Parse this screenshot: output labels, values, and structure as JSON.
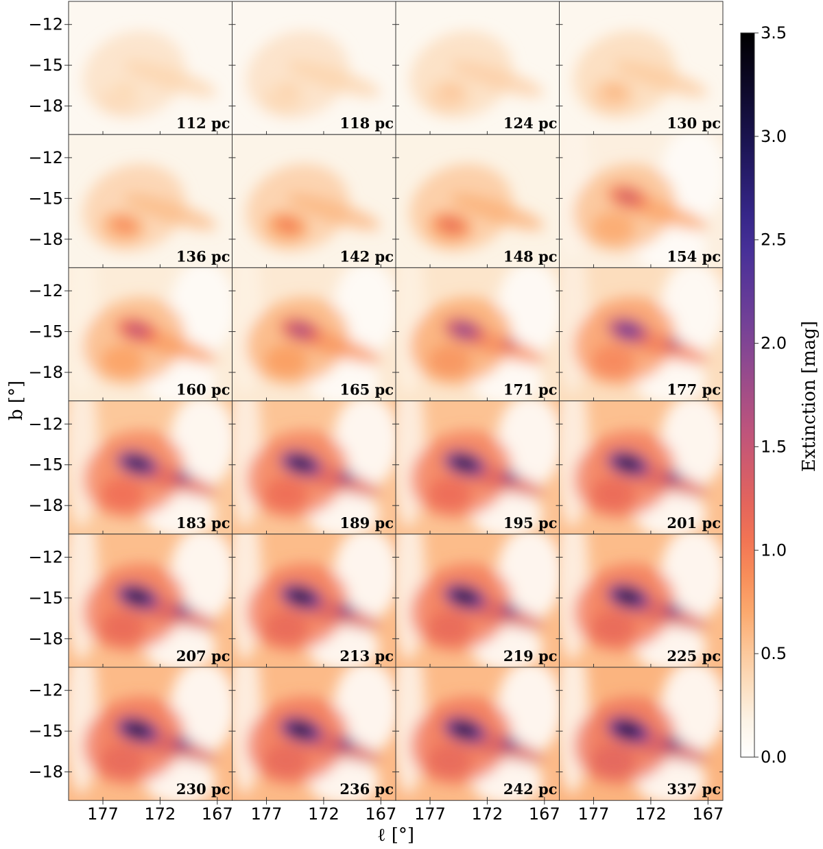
{
  "chart_data": {
    "type": "heatmap",
    "layout": {
      "rows": 6,
      "cols": 4
    },
    "panels": [
      {
        "label": "112 pc",
        "peak": 0.42
      },
      {
        "label": "118 pc",
        "peak": 0.45
      },
      {
        "label": "124 pc",
        "peak": 0.55
      },
      {
        "label": "130 pc",
        "peak": 0.65
      },
      {
        "label": "136 pc",
        "peak": 0.95
      },
      {
        "label": "142 pc",
        "peak": 1.05
      },
      {
        "label": "148 pc",
        "peak": 1.2
      },
      {
        "label": "154 pc",
        "peak": 1.4
      },
      {
        "label": "160 pc",
        "peak": 1.6
      },
      {
        "label": "165 pc",
        "peak": 1.75
      },
      {
        "label": "171 pc",
        "peak": 1.95
      },
      {
        "label": "177 pc",
        "peak": 2.3
      },
      {
        "label": "183 pc",
        "peak": 3.0
      },
      {
        "label": "189 pc",
        "peak": 3.1
      },
      {
        "label": "195 pc",
        "peak": 3.15
      },
      {
        "label": "201 pc",
        "peak": 3.2
      },
      {
        "label": "207 pc",
        "peak": 3.25
      },
      {
        "label": "213 pc",
        "peak": 3.3
      },
      {
        "label": "219 pc",
        "peak": 3.3
      },
      {
        "label": "225 pc",
        "peak": 3.3
      },
      {
        "label": "230 pc",
        "peak": 3.35
      },
      {
        "label": "236 pc",
        "peak": 3.35
      },
      {
        "label": "242 pc",
        "peak": 3.35
      },
      {
        "label": "337 pc",
        "peak": 3.5
      }
    ],
    "xlabel": "ℓ [°]",
    "ylabel": "b [°]",
    "xlim": [
      180,
      165.7
    ],
    "ylim": [
      -20.1,
      -10.3
    ],
    "xticks": [
      177,
      172,
      167
    ],
    "yticks": [
      -12,
      -15,
      -18
    ],
    "colorbar": {
      "label": "Extinction [mag]",
      "range": [
        0.0,
        3.5
      ],
      "ticks": [
        "0.0",
        "0.5",
        "1.0",
        "1.5",
        "2.0",
        "2.5",
        "3.0",
        "3.5"
      ]
    }
  }
}
